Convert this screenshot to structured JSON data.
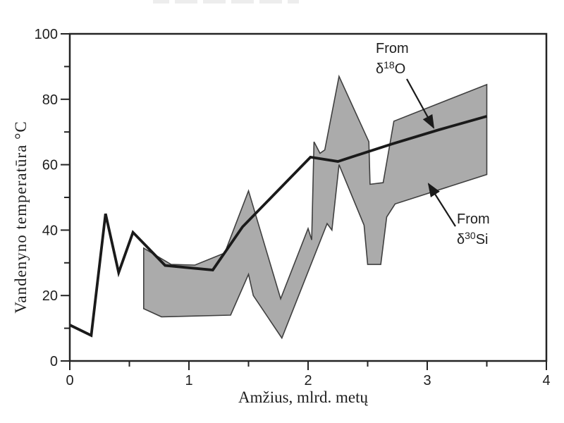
{
  "figure": {
    "background": "#ffffff",
    "colors": {
      "line": "#1a1a1a",
      "band_fill": "#ababab",
      "band_edge": "#3f3f3f",
      "axis": "#242424",
      "text": "#1e1e1e"
    }
  },
  "chart_data": {
    "type": "line",
    "title": "",
    "xlabel": "Amžius, mlrd. metų",
    "ylabel": "Vandenyno temperatūra °C",
    "xlim": [
      0,
      4
    ],
    "ylim": [
      0,
      100
    ],
    "grid": false,
    "x_major_ticks": [
      0,
      1,
      2,
      3,
      4
    ],
    "x_minor_ticks": [
      0.5,
      1.5,
      2.5,
      3.5
    ],
    "y_major_ticks": [
      0,
      20,
      40,
      60,
      80,
      100
    ],
    "y_minor_ticks": [
      10,
      30,
      50,
      70,
      90
    ],
    "series": [
      {
        "name": "From δ18O",
        "type": "line",
        "points": [
          [
            0,
            11
          ],
          [
            0.18,
            7.8
          ],
          [
            0.3,
            45
          ],
          [
            0.41,
            27
          ],
          [
            0.53,
            39.3
          ],
          [
            0.8,
            29.2
          ],
          [
            1.0,
            28.5
          ],
          [
            1.2,
            27.8
          ],
          [
            1.45,
            41
          ],
          [
            2.02,
            62.3
          ],
          [
            2.25,
            61
          ],
          [
            2.7,
            66.3
          ],
          [
            3.1,
            70.7
          ],
          [
            3.5,
            74.8
          ]
        ]
      },
      {
        "name": "From δ30Si",
        "type": "band",
        "polygon": [
          [
            0.62,
            34.5
          ],
          [
            0.85,
            29.5
          ],
          [
            1.05,
            29.3
          ],
          [
            1.3,
            33
          ],
          [
            1.5,
            52
          ],
          [
            1.77,
            19
          ],
          [
            2.0,
            40.5
          ],
          [
            2.03,
            37
          ],
          [
            2.05,
            67
          ],
          [
            2.1,
            63.5
          ],
          [
            2.14,
            64.5
          ],
          [
            2.26,
            87
          ],
          [
            2.51,
            67
          ],
          [
            2.52,
            54
          ],
          [
            2.63,
            54.5
          ],
          [
            2.72,
            73.3
          ],
          [
            3.5,
            84.5
          ],
          [
            3.5,
            57
          ],
          [
            2.73,
            48
          ],
          [
            2.66,
            44
          ],
          [
            2.61,
            29.5
          ],
          [
            2.5,
            29.5
          ],
          [
            2.47,
            41.5
          ],
          [
            2.26,
            60
          ],
          [
            2.2,
            40
          ],
          [
            2.16,
            42
          ],
          [
            1.78,
            7
          ],
          [
            1.54,
            20
          ],
          [
            1.5,
            26.5
          ],
          [
            1.35,
            14
          ],
          [
            0.77,
            13.5
          ],
          [
            0.62,
            16
          ]
        ]
      }
    ],
    "annotations": [
      {
        "name": "from-delta-18-O",
        "lines": [
          "From",
          "δ^18^O"
        ]
      },
      {
        "name": "from-delta-30-Si",
        "lines": [
          "From",
          "δ^30^Si"
        ]
      }
    ]
  }
}
